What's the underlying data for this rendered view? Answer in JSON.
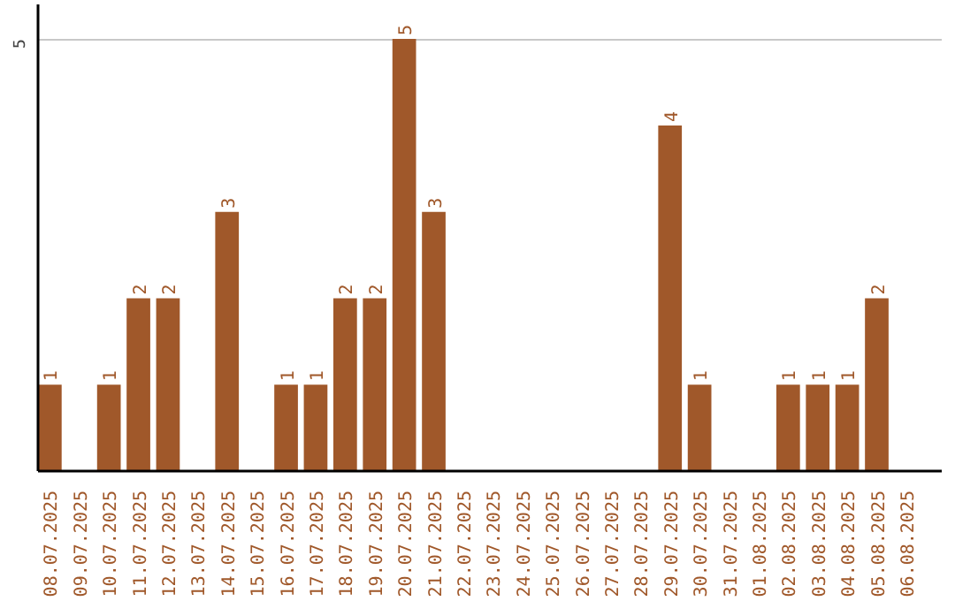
{
  "chart_data": {
    "type": "bar",
    "categories": [
      "08.07.2025",
      "09.07.2025",
      "10.07.2025",
      "11.07.2025",
      "12.07.2025",
      "13.07.2025",
      "14.07.2025",
      "15.07.2025",
      "16.07.2025",
      "17.07.2025",
      "18.07.2025",
      "19.07.2025",
      "20.07.2025",
      "21.07.2025",
      "22.07.2025",
      "23.07.2025",
      "24.07.2025",
      "25.07.2025",
      "26.07.2025",
      "27.07.2025",
      "28.07.2025",
      "29.07.2025",
      "30.07.2025",
      "31.07.2025",
      "01.08.2025",
      "02.08.2025",
      "03.08.2025",
      "04.08.2025",
      "05.08.2025",
      "06.08.2025"
    ],
    "values": [
      1,
      0,
      1,
      2,
      2,
      0,
      3,
      0,
      1,
      1,
      2,
      2,
      5,
      3,
      0,
      0,
      0,
      0,
      0,
      0,
      0,
      4,
      1,
      0,
      0,
      1,
      1,
      1,
      2,
      0
    ],
    "value_labels": [
      "1",
      null,
      "1",
      "2",
      "2",
      null,
      "3",
      null,
      "1",
      "1",
      "2",
      "2",
      "5",
      "3",
      null,
      null,
      null,
      null,
      null,
      null,
      null,
      "4",
      "1",
      null,
      null,
      "1",
      "1",
      "1",
      "2",
      null
    ],
    "color": "#a0582a",
    "ylim": [
      0,
      5.4
    ],
    "yticks": [
      5
    ],
    "grid": "y"
  }
}
